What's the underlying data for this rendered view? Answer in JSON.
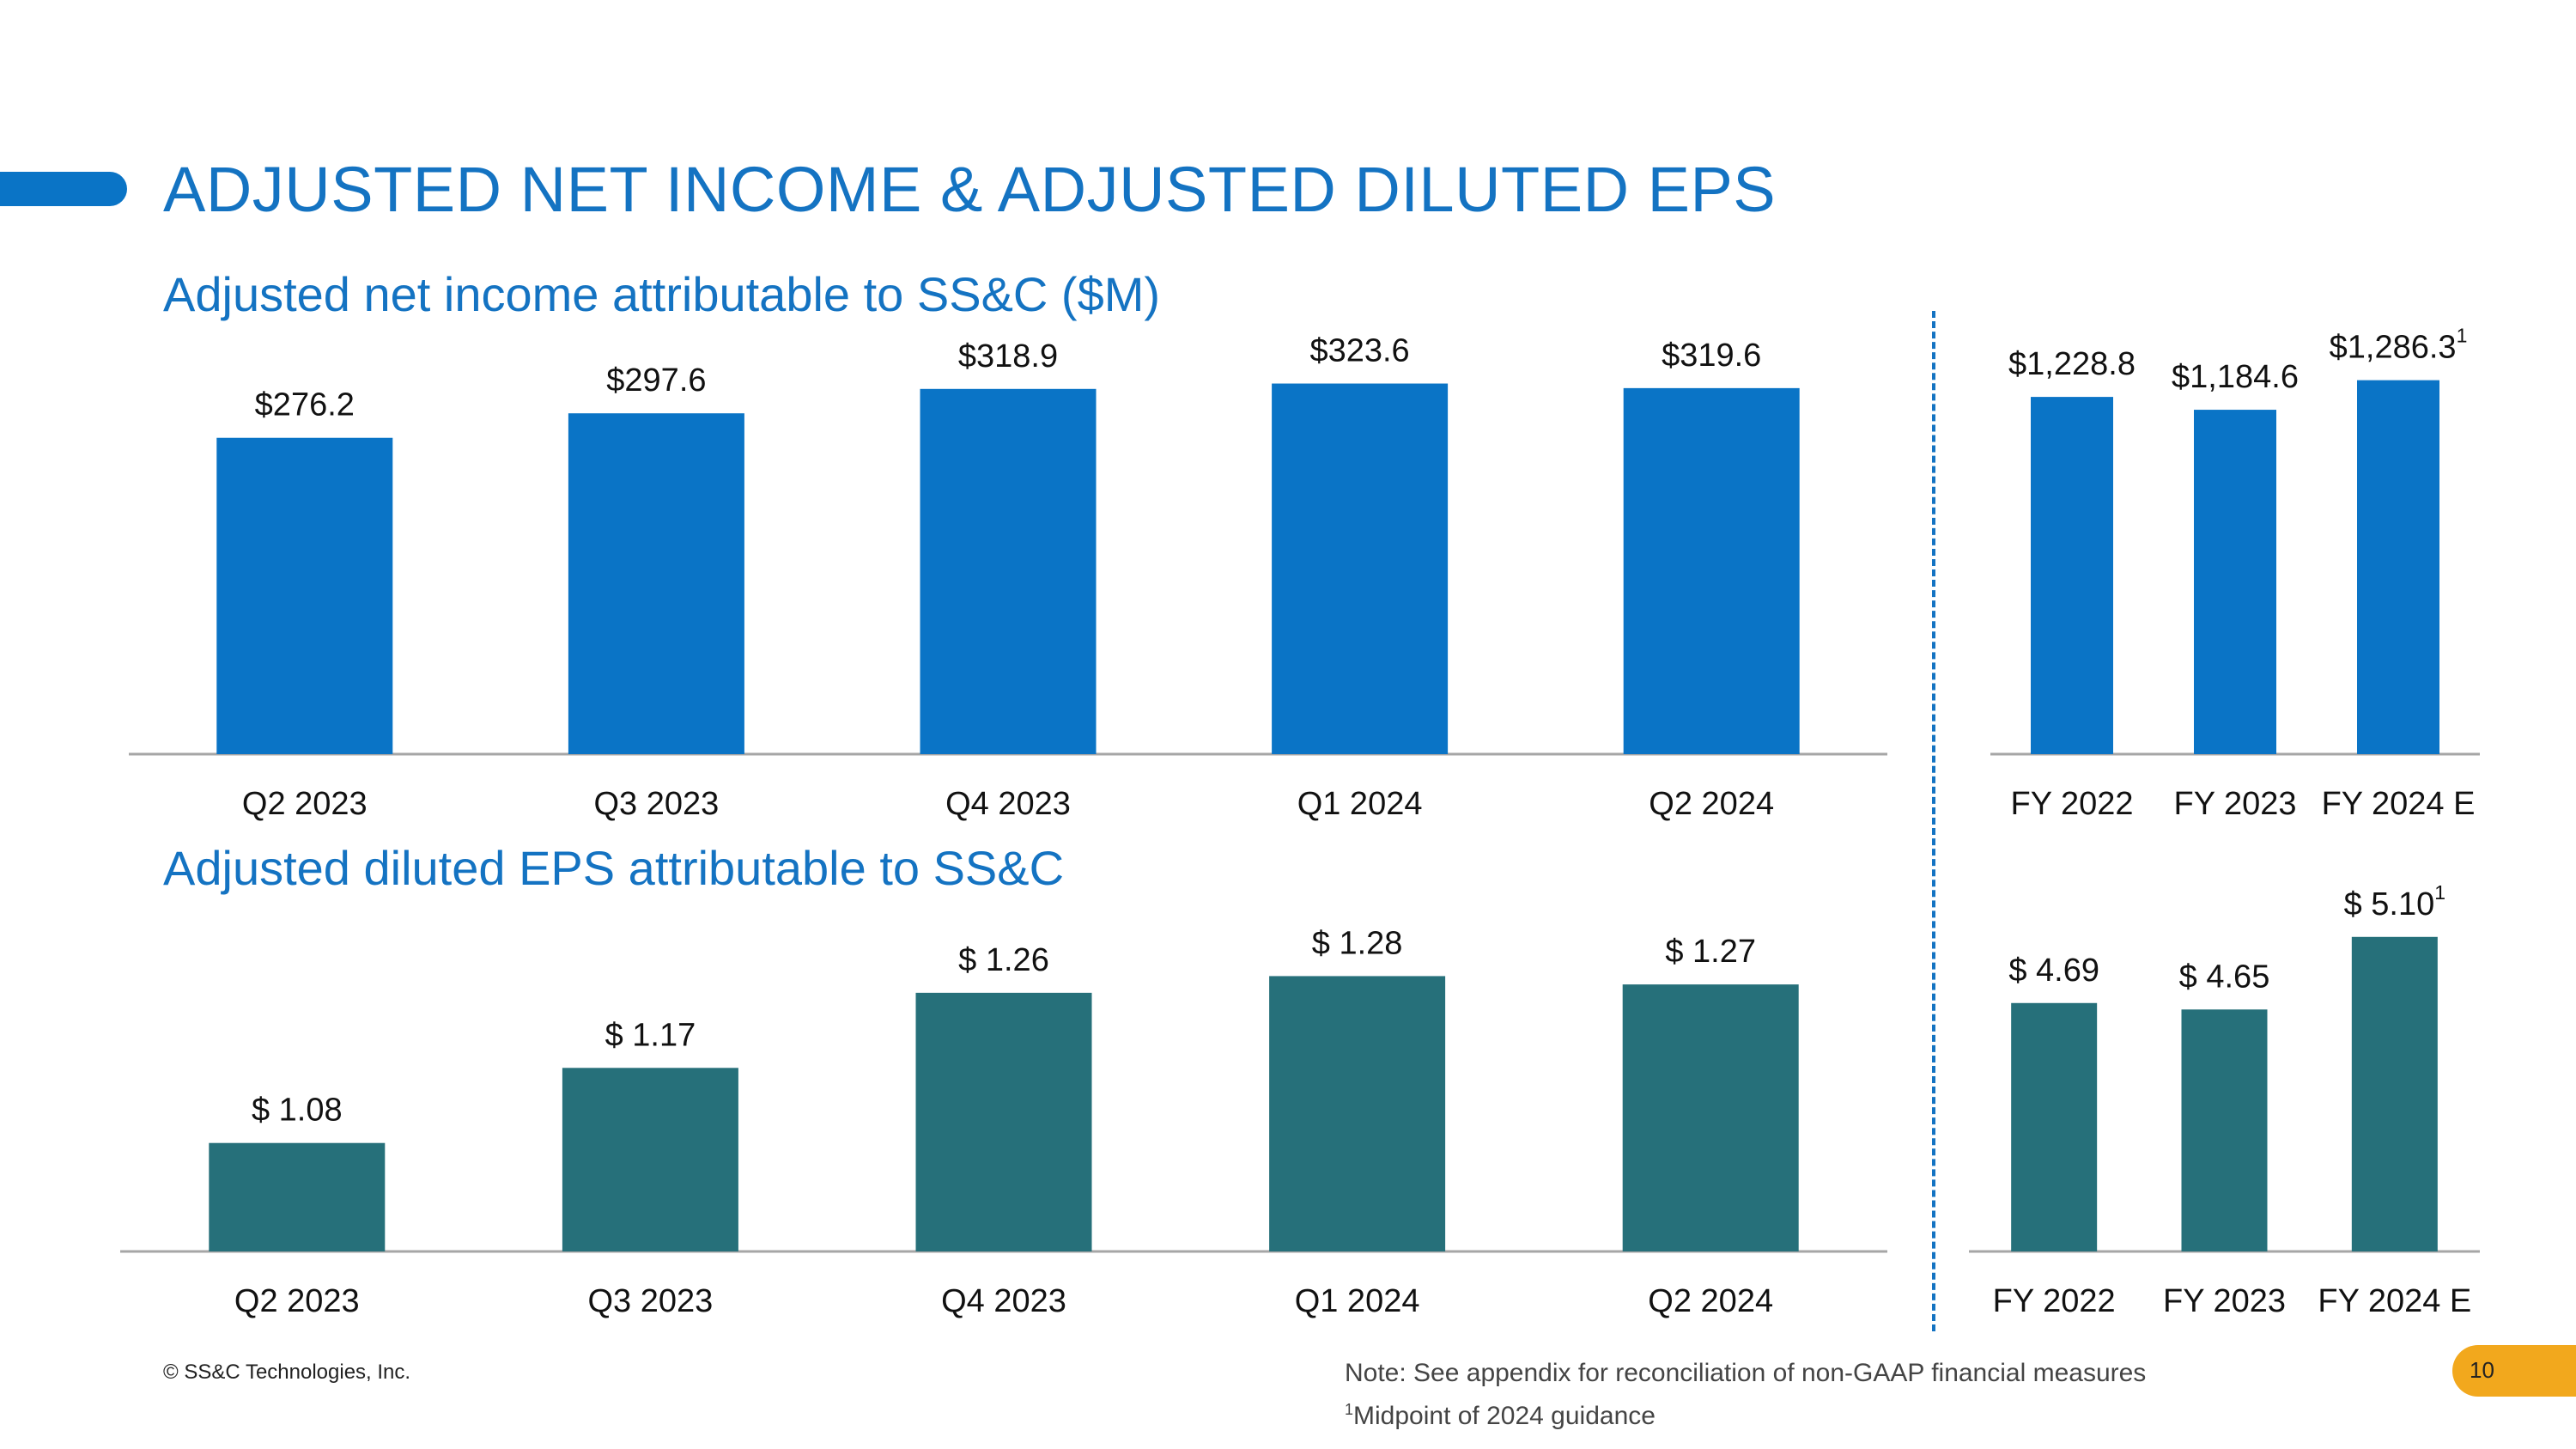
{
  "title": "ADJUSTED NET INCOME & ADJUSTED DILUTED EPS",
  "colors": {
    "accent": "#0a74c6",
    "income_bar": "#0a74c6",
    "eps_bar": "#26707a",
    "page_badge": "#f2a81d"
  },
  "chart_data": [
    {
      "id": "income_quarterly",
      "type": "bar",
      "title": "Adjusted net income attributable to SS&C ($M)",
      "categories": [
        "Q2 2023",
        "Q3 2023",
        "Q4 2023",
        "Q1 2024",
        "Q2 2024"
      ],
      "values": [
        276.2,
        297.6,
        318.9,
        323.6,
        319.6
      ],
      "labels": [
        "$276.2",
        "$297.6",
        "$318.9",
        "$323.6",
        "$319.6"
      ],
      "ylim": [
        0,
        330
      ],
      "color": "#0a74c6",
      "grid": false
    },
    {
      "id": "income_annual",
      "type": "bar",
      "title": "",
      "categories": [
        "FY 2022",
        "FY 2023",
        "FY 2024 E"
      ],
      "values": [
        1228.8,
        1184.6,
        1286.3
      ],
      "labels": [
        "$1,228.8",
        "$1,184.6",
        "$1,286.3"
      ],
      "label_sup": [
        "",
        "",
        "1"
      ],
      "ylim": [
        0,
        1300
      ],
      "color": "#0a74c6",
      "grid": false
    },
    {
      "id": "eps_quarterly",
      "type": "bar",
      "title": "Adjusted diluted EPS attributable to SS&C",
      "categories": [
        "Q2 2023",
        "Q3 2023",
        "Q4 2023",
        "Q1 2024",
        "Q2 2024"
      ],
      "values": [
        1.08,
        1.17,
        1.26,
        1.28,
        1.27
      ],
      "labels": [
        "$ 1.08",
        "$ 1.17",
        "$ 1.26",
        "$ 1.28",
        "$ 1.27"
      ],
      "ylim": [
        0.95,
        1.3
      ],
      "color": "#26707a",
      "grid": false
    },
    {
      "id": "eps_annual",
      "type": "bar",
      "title": "",
      "categories": [
        "FY 2022",
        "FY 2023",
        "FY 2024 E"
      ],
      "values": [
        4.69,
        4.65,
        5.1
      ],
      "labels": [
        "$ 4.69",
        "$ 4.65",
        "$ 5.10"
      ],
      "label_sup": [
        "",
        "",
        "1"
      ],
      "ylim": [
        3.15,
        5.2
      ],
      "color": "#26707a",
      "grid": false
    }
  ],
  "footer": {
    "copyright": "© SS&C Technologies, Inc.",
    "note_line1": "Note: See appendix for reconciliation of non-GAAP financial measures",
    "note_sup": "1",
    "note_line2": "Midpoint of 2024 guidance",
    "page_number": "10"
  }
}
